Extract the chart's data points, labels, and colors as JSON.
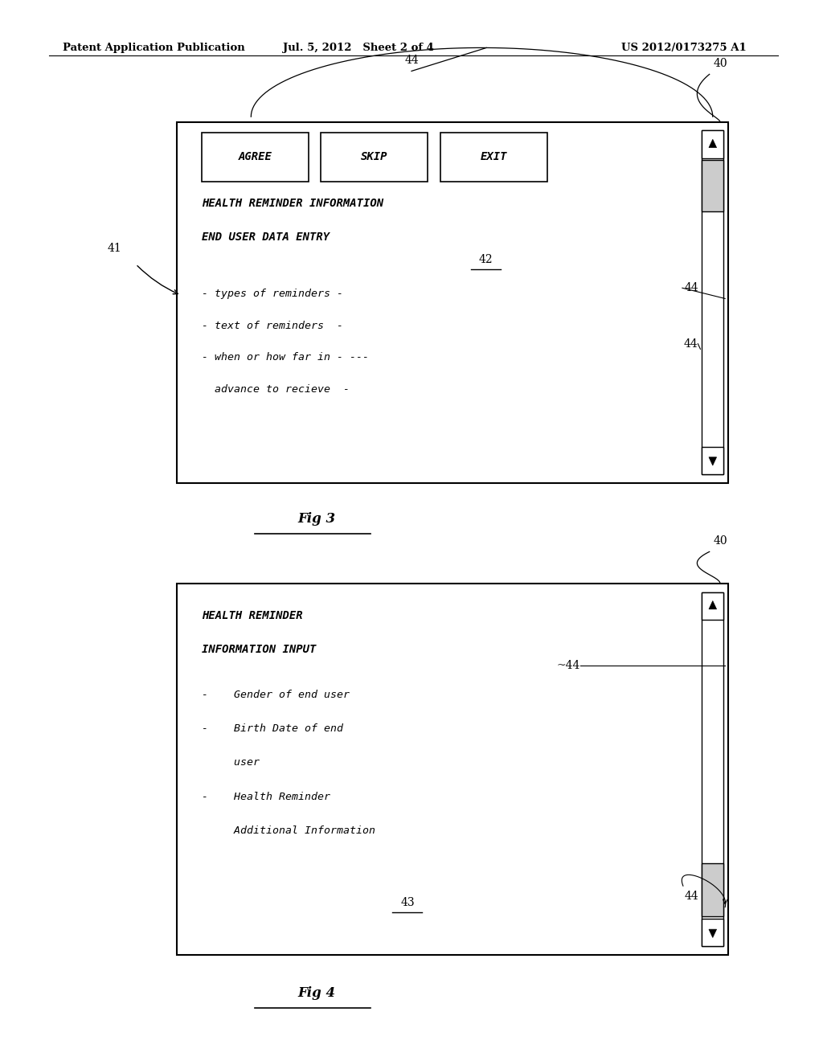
{
  "background_color": "#ffffff",
  "header_left": "Patent Application Publication",
  "header_mid": "Jul. 5, 2012   Sheet 2 of 4",
  "header_right": "US 2012/0173275 A1",
  "fig1": {
    "bx": 0.215,
    "by": 0.545,
    "bw": 0.67,
    "bh": 0.34,
    "btn_labels": [
      "AGREE",
      "SKIP",
      "EXIT"
    ],
    "title_line1": "HEALTH REMINDER INFORMATION",
    "title_line2": "END USER DATA ENTRY",
    "items": [
      "- types of reminders -",
      "- text of reminders  -",
      "- when or how far in - ---",
      "  advance to recieve  -"
    ],
    "fig_label": "Fig 3",
    "label_41": "41",
    "label_40": "40",
    "label_44_top": "44",
    "label_44_mid": "44",
    "label_44_list": "44",
    "label_42": "42"
  },
  "fig2": {
    "bx": 0.215,
    "by": 0.1,
    "bw": 0.67,
    "bh": 0.35,
    "title_line1": "HEALTH REMINDER",
    "title_line2": "INFORMATION INPUT",
    "items": [
      "-    Gender of end user",
      "-    Birth Date of end",
      "     user",
      "-    Health Reminder",
      "     Additional Information"
    ],
    "fig_label": "Fig 4",
    "label_40": "40",
    "label_44_top": "44",
    "label_44_bottom": "44",
    "label_43": "43"
  }
}
